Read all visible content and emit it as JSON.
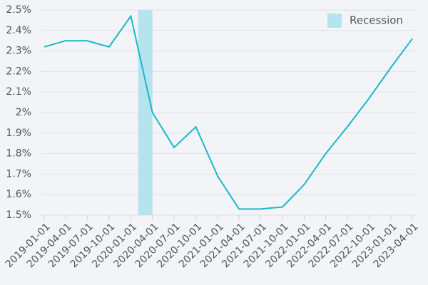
{
  "chart_data": {
    "type": "line",
    "x": [
      "2019-01-01",
      "2019-04-01",
      "2019-07-01",
      "2019-10-01",
      "2020-01-01",
      "2020-04-01",
      "2020-07-01",
      "2020-10-01",
      "2021-01-01",
      "2021-04-01",
      "2021-07-01",
      "2021-10-01",
      "2022-01-01",
      "2022-04-01",
      "2022-07-01",
      "2022-10-01",
      "2023-01-01",
      "2023-04-01"
    ],
    "values": [
      2.32,
      2.35,
      2.35,
      2.32,
      2.47,
      2.0,
      1.83,
      1.93,
      1.69,
      1.53,
      1.53,
      1.54,
      1.65,
      1.8,
      1.93,
      2.07,
      2.22,
      2.36
    ],
    "color": "#1bb7c9",
    "ylim": [
      1.5,
      2.5
    ],
    "yticks": [
      {
        "value": 1.5,
        "label": "1.5%"
      },
      {
        "value": 1.6,
        "label": "1.6%"
      },
      {
        "value": 1.7,
        "label": "1.7%"
      },
      {
        "value": 1.8,
        "label": "1.8%"
      },
      {
        "value": 1.9,
        "label": "1.9%"
      },
      {
        "value": 2.0,
        "label": "2%"
      },
      {
        "value": 2.1,
        "label": "2.1%"
      },
      {
        "value": 2.2,
        "label": "2.2%"
      },
      {
        "value": 2.3,
        "label": "2.3%"
      },
      {
        "value": 2.4,
        "label": "2.4%"
      },
      {
        "value": 2.5,
        "label": "2.5%"
      }
    ],
    "grid": true,
    "recession": {
      "name": "Recession",
      "start": "2020-02-01",
      "end": "2020-04-01",
      "color": "#b5e3ee"
    },
    "legend": "top-right"
  }
}
